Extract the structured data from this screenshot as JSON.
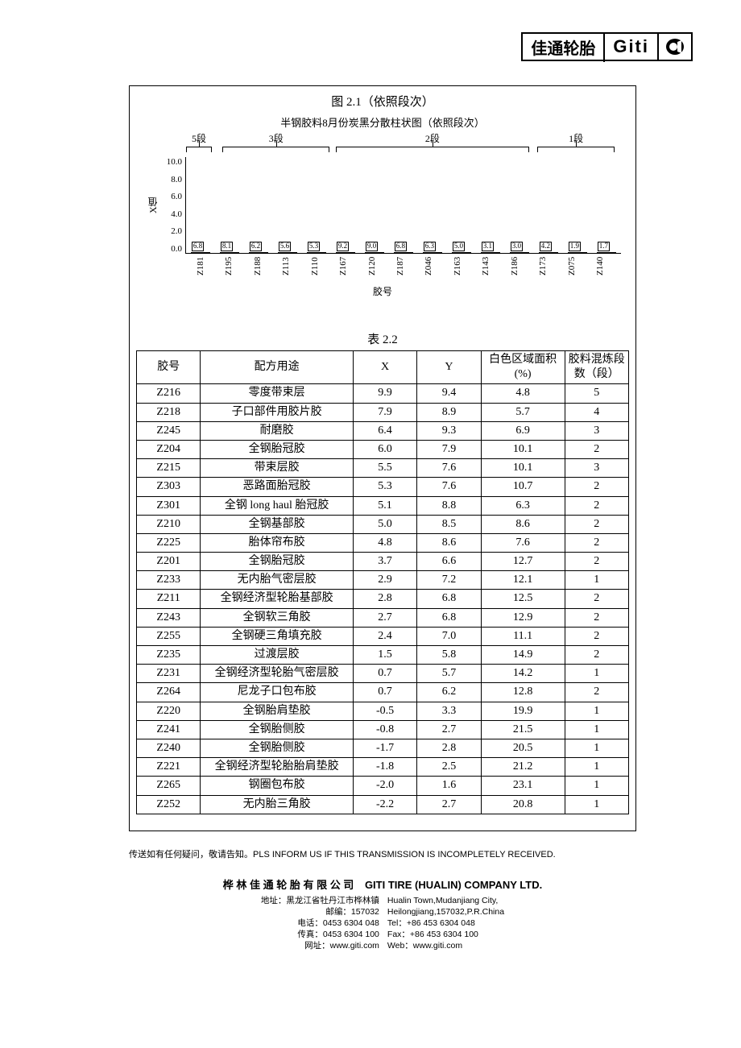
{
  "logo": {
    "cn": "佳通轮胎",
    "en": "Giti"
  },
  "chart": {
    "caption": "图 2.1（依照段次）",
    "title": "半钢胶料8月份炭黑分散柱状图（依照段次）",
    "y_label": "X值",
    "x_label": "胶号",
    "ylim": [
      0,
      10
    ],
    "ytick_step": 2,
    "yticks": [
      "10.0",
      "8.0",
      "6.0",
      "4.0",
      "2.0",
      "0.0"
    ],
    "segments": [
      {
        "label": "5段",
        "left_pct": 0,
        "width_pct": 6
      },
      {
        "label": "3段",
        "left_pct": 8.5,
        "width_pct": 25
      },
      {
        "label": "2段",
        "left_pct": 35,
        "width_pct": 45
      },
      {
        "label": "1段",
        "left_pct": 82,
        "width_pct": 18
      }
    ],
    "bars": [
      {
        "cat": "Z181",
        "val": 6.8
      },
      {
        "cat": "Z195",
        "val": 8.1
      },
      {
        "cat": "Z188",
        "val": 6.2
      },
      {
        "cat": "Z113",
        "val": 5.6
      },
      {
        "cat": "Z110",
        "val": 5.3
      },
      {
        "cat": "Z167",
        "val": 9.2
      },
      {
        "cat": "Z120",
        "val": 9.0
      },
      {
        "cat": "Z187",
        "val": 6.8
      },
      {
        "cat": "Z046",
        "val": 6.3
      },
      {
        "cat": "Z163",
        "val": 5.0
      },
      {
        "cat": "Z143",
        "val": 3.1
      },
      {
        "cat": "Z186",
        "val": 3.0
      },
      {
        "cat": "Z173",
        "val": 4.2
      },
      {
        "cat": "Z075",
        "val": 1.9
      },
      {
        "cat": "Z140",
        "val": 1.7
      }
    ],
    "bar_fill": "#ffffff",
    "bar_border": "#000000",
    "background": "#ffffff"
  },
  "table": {
    "caption": "表 2.2",
    "headers": [
      "胶号",
      "配方用途",
      "X",
      "Y",
      "白色区域面积(%)",
      "胶料混炼段数（段）"
    ],
    "rows": [
      [
        "Z216",
        "零度带束层",
        "9.9",
        "9.4",
        "4.8",
        "5"
      ],
      [
        "Z218",
        "子口部件用胶片胶",
        "7.9",
        "8.9",
        "5.7",
        "4"
      ],
      [
        "Z245",
        "耐磨胶",
        "6.4",
        "9.3",
        "6.9",
        "3"
      ],
      [
        "Z204",
        "全钢胎冠胶",
        "6.0",
        "7.9",
        "10.1",
        "2"
      ],
      [
        "Z215",
        "带束层胶",
        "5.5",
        "7.6",
        "10.1",
        "3"
      ],
      [
        "Z303",
        "恶路面胎冠胶",
        "5.3",
        "7.6",
        "10.7",
        "2"
      ],
      [
        "Z301",
        "全钢 long haul 胎冠胶",
        "5.1",
        "8.8",
        "6.3",
        "2"
      ],
      [
        "Z210",
        "全钢基部胶",
        "5.0",
        "8.5",
        "8.6",
        "2"
      ],
      [
        "Z225",
        "胎体帘布胶",
        "4.8",
        "8.6",
        "7.6",
        "2"
      ],
      [
        "Z201",
        "全钢胎冠胶",
        "3.7",
        "6.6",
        "12.7",
        "2"
      ],
      [
        "Z233",
        "无内胎气密层胶",
        "2.9",
        "7.2",
        "12.1",
        "1"
      ],
      [
        "Z211",
        "全钢经济型轮胎基部胶",
        "2.8",
        "6.8",
        "12.5",
        "2"
      ],
      [
        "Z243",
        "全钢软三角胶",
        "2.7",
        "6.8",
        "12.9",
        "2"
      ],
      [
        "Z255",
        "全钢硬三角填充胶",
        "2.4",
        "7.0",
        "11.1",
        "2"
      ],
      [
        "Z235",
        "过渡层胶",
        "1.5",
        "5.8",
        "14.9",
        "2"
      ],
      [
        "Z231",
        "全钢经济型轮胎气密层胶",
        "0.7",
        "5.7",
        "14.2",
        "1"
      ],
      [
        "Z264",
        "尼龙子口包布胶",
        "0.7",
        "6.2",
        "12.8",
        "2"
      ],
      [
        "Z220",
        "全钢胎肩垫胶",
        "-0.5",
        "3.3",
        "19.9",
        "1"
      ],
      [
        "Z241",
        "全钢胎侧胶",
        "-0.8",
        "2.7",
        "21.5",
        "1"
      ],
      [
        "Z240",
        "全钢胎侧胶",
        "-1.7",
        "2.8",
        "20.5",
        "1"
      ],
      [
        "Z221",
        "全钢经济型轮胎胎肩垫胶",
        "-1.8",
        "2.5",
        "21.2",
        "1"
      ],
      [
        "Z265",
        "钢圈包布胶",
        "-2.0",
        "1.6",
        "23.1",
        "1"
      ],
      [
        "Z252",
        "无内胎三角胶",
        "-2.2",
        "2.7",
        "20.8",
        "1"
      ]
    ]
  },
  "footer": {
    "note": "传送如有任何疑问，敬请告知。PLS INFORM US IF THIS TRANSMISSION IS INCOMPLETELY RECEIVED.",
    "company_cn": "桦 林 佳 通 轮 胎 有 限 公 司",
    "company_en": "GITI TIRE (HUALIN) COMPANY LTD.",
    "addr_cn": [
      "地址：黑龙江省牡丹江市桦林镇",
      "邮编：157032",
      "电话：0453 6304 048",
      "传真：0453 6304 100",
      "网址：www.giti.com"
    ],
    "addr_en": [
      "Hualin Town,Mudanjiang City,",
      "Heilongjiang,157032,P.R.China",
      "Tel：+86 453 6304 048",
      "Fax：+86 453 6304 100",
      "Web：www.giti.com"
    ]
  }
}
